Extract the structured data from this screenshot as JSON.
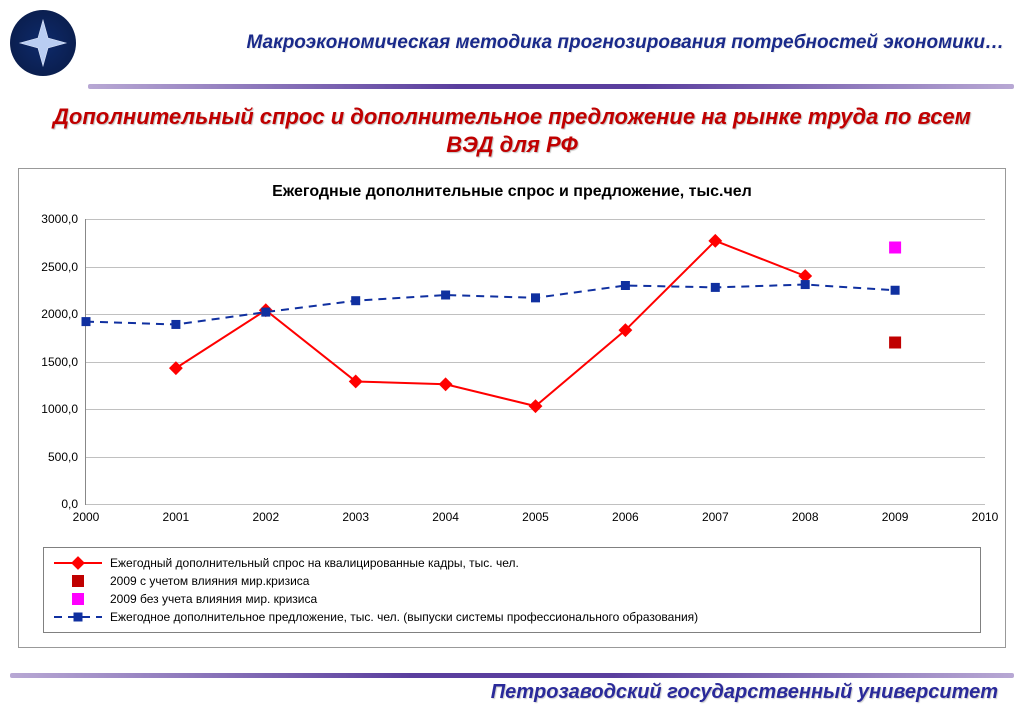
{
  "header": {
    "title": "Макроэкономическая методика прогнозирования потребностей экономики…"
  },
  "main_title": "Дополнительный спрос и дополнительное предложение на рынке труда по всем ВЭД для РФ",
  "footer": "Петрозаводский государственный университет",
  "chart": {
    "type": "line",
    "title": "Ежегодные дополнительные спрос и предложение, тыс.чел",
    "background_color": "#ffffff",
    "grid_color": "#c0c0c0",
    "axis_color": "#808080",
    "tick_fontsize": 12,
    "xlim": [
      2000,
      2010
    ],
    "ylim": [
      0,
      3000
    ],
    "ytick_step": 500,
    "xtick_step": 1,
    "yticks": [
      "0,0",
      "500,0",
      "1000,0",
      "1500,0",
      "2000,0",
      "2500,0",
      "3000,0"
    ],
    "xticks": [
      "2000",
      "2001",
      "2002",
      "2003",
      "2004",
      "2005",
      "2006",
      "2007",
      "2008",
      "2009",
      "2010"
    ],
    "series": [
      {
        "id": "demand",
        "label": "Ежегодный дополнительный спрос на квалицированные кадры, тыс. чел.",
        "type": "line",
        "color": "#ff0000",
        "line_width": 2,
        "marker": "diamond",
        "marker_size": 9,
        "x": [
          2001,
          2002,
          2003,
          2004,
          2005,
          2006,
          2007,
          2008
        ],
        "y": [
          1430,
          2040,
          1290,
          1260,
          1030,
          1830,
          2770,
          2400
        ]
      },
      {
        "id": "crisis_with",
        "label": "2009 с учетом влияния мир.кризиса",
        "type": "scatter",
        "color": "#c00000",
        "marker": "square",
        "marker_size": 12,
        "x": [
          2009
        ],
        "y": [
          1700
        ]
      },
      {
        "id": "crisis_without",
        "label": "2009 без учета влияния мир. кризиса",
        "type": "scatter",
        "color": "#ff00ff",
        "marker": "square",
        "marker_size": 12,
        "x": [
          2009
        ],
        "y": [
          2700
        ]
      },
      {
        "id": "supply",
        "label": "Ежегодное дополнительное предложение, тыс. чел. (выпуски системы профессионального образования)",
        "type": "line",
        "color": "#1030a0",
        "dash": "8,6",
        "line_width": 2,
        "marker": "square",
        "marker_size": 9,
        "x": [
          2000,
          2001,
          2002,
          2003,
          2004,
          2005,
          2006,
          2007,
          2008,
          2009
        ],
        "y": [
          1920,
          1890,
          2020,
          2140,
          2200,
          2170,
          2300,
          2280,
          2310,
          2250
        ]
      }
    ]
  }
}
